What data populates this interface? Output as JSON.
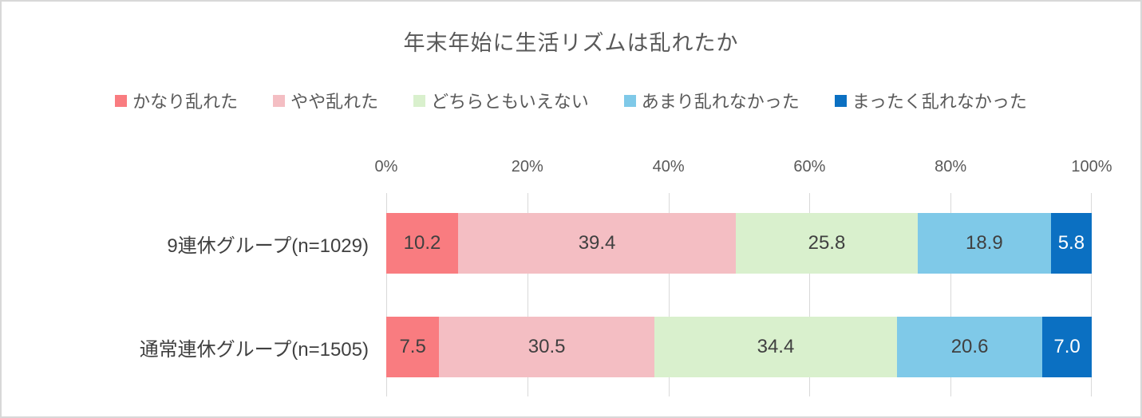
{
  "chart_data": {
    "type": "bar",
    "orientation": "horizontal",
    "stacked": true,
    "title": "年末年始に生活リズムは乱れたか",
    "categories": [
      "9連休グループ(n=1029)",
      "通常連休グループ(n=1505)"
    ],
    "series": [
      {
        "name": "かなり乱れた",
        "color": "#f97c80",
        "label_color": "#404040",
        "values": [
          10.2,
          7.5
        ]
      },
      {
        "name": "やや乱れた",
        "color": "#f4bec3",
        "label_color": "#404040",
        "values": [
          39.4,
          30.5
        ]
      },
      {
        "name": "どちらともいえない",
        "color": "#d9f0cd",
        "label_color": "#404040",
        "values": [
          25.8,
          34.4
        ]
      },
      {
        "name": "あまり乱れなかった",
        "color": "#7fc9e8",
        "label_color": "#404040",
        "values": [
          18.9,
          20.6
        ]
      },
      {
        "name": "まったく乱れなかった",
        "color": "#0b70c2",
        "label_color": "#ffffff",
        "values": [
          5.8,
          7.0
        ]
      }
    ],
    "x_ticks": [
      "0%",
      "20%",
      "40%",
      "60%",
      "80%",
      "100%"
    ],
    "xlim": [
      0,
      100
    ],
    "grid": true,
    "legend_position": "top"
  },
  "styles": {
    "title_color": "#595959",
    "axis_text_color": "#595959",
    "label_color": "#404040",
    "gridline_color": "#d9d9d9",
    "card_border_color": "#d8d8d8",
    "background": "#ffffff"
  }
}
